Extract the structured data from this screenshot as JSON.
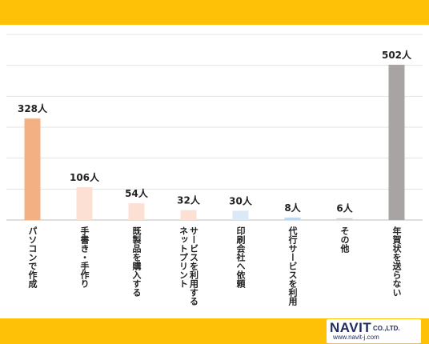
{
  "chart_data": {
    "type": "bar",
    "categories": [
      "パソコンで作成",
      "手書き・手作り",
      "既製品を購入する",
      "ネットプリントサービスを利用する",
      "印刷会社へ依頼",
      "代行サービスを利用",
      "その他",
      "年賀状を送らない"
    ],
    "category_lines": [
      [
        "パソコンで作成"
      ],
      [
        "手書き・手作り"
      ],
      [
        "既製品を購入する"
      ],
      [
        "ネットプリント",
        "サービスを利用する"
      ],
      [
        "印刷会社へ依頼"
      ],
      [
        "代行サービスを利用"
      ],
      [
        "その他"
      ],
      [
        "年賀状を送らない"
      ]
    ],
    "values": [
      328,
      106,
      54,
      32,
      30,
      8,
      6,
      502
    ],
    "value_labels": [
      "328人",
      "106人",
      "54人",
      "32人",
      "30人",
      "8人",
      "6人",
      "502人"
    ],
    "colors": [
      "#f2b083",
      "#fbe0d3",
      "#fbe0d3",
      "#fbe0d3",
      "#dbe9f7",
      "#bfd8ef",
      "#d5d5d5",
      "#a9a4a4"
    ],
    "ylim": [
      0,
      600
    ],
    "grid": true,
    "title": "",
    "xlabel": "",
    "ylabel": ""
  },
  "logo": {
    "brand": "NAVIT",
    "suffix": "CO.,LTD.",
    "url": "www.navit-j.com"
  }
}
